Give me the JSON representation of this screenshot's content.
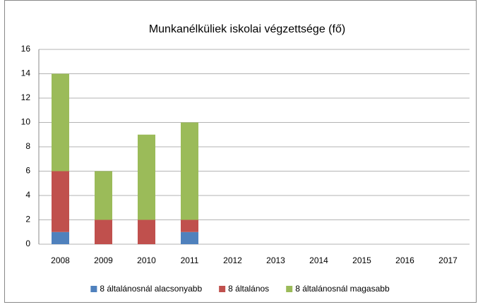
{
  "chart_data": {
    "type": "stacked_bar",
    "title": "Munkanélküliek iskolai végzettsége (fő)",
    "categories": [
      "2008",
      "2009",
      "2010",
      "2011",
      "2012",
      "2013",
      "2014",
      "2015",
      "2016",
      "2017"
    ],
    "series": [
      {
        "name": "8 általánosnál alacsonyabb",
        "color": "#4f81bd",
        "values": [
          1,
          0,
          0,
          1,
          null,
          null,
          null,
          null,
          null,
          null
        ]
      },
      {
        "name": "8 általános",
        "color": "#c0504d",
        "values": [
          5,
          2,
          2,
          1,
          null,
          null,
          null,
          null,
          null,
          null
        ]
      },
      {
        "name": "8 általánosnál magasabb",
        "color": "#9bbb59",
        "values": [
          8,
          4,
          7,
          8,
          null,
          null,
          null,
          null,
          null,
          null
        ]
      }
    ],
    "ylim": [
      0,
      16
    ],
    "yticks": [
      0,
      2,
      4,
      6,
      8,
      10,
      12,
      14,
      16
    ],
    "grid": true,
    "legend": "bottom"
  }
}
